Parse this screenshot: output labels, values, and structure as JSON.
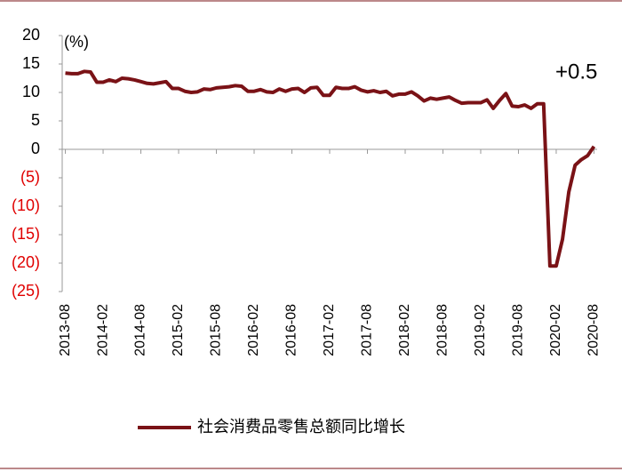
{
  "chart_data": {
    "type": "line",
    "annotations": [
      "(%)",
      "+0.5"
    ],
    "categories": [
      "2013-08",
      null,
      null,
      null,
      null,
      null,
      "2014-02",
      null,
      null,
      null,
      null,
      null,
      "2014-08",
      null,
      null,
      null,
      null,
      null,
      "2015-02",
      null,
      null,
      null,
      null,
      null,
      "2015-08",
      null,
      null,
      null,
      null,
      null,
      "2016-02",
      null,
      null,
      null,
      null,
      null,
      "2016-08",
      null,
      null,
      null,
      null,
      null,
      "2017-02",
      null,
      null,
      null,
      null,
      null,
      "2017-08",
      null,
      null,
      null,
      null,
      null,
      "2018-02",
      null,
      null,
      null,
      null,
      null,
      "2018-08",
      null,
      null,
      null,
      null,
      null,
      "2019-02",
      null,
      null,
      null,
      null,
      null,
      "2019-08",
      null,
      null,
      null,
      null,
      null,
      "2020-02",
      null,
      null,
      null,
      null,
      null,
      "2020-08"
    ],
    "series": [
      {
        "name": "社会消费品零售总额同比增长",
        "color": "#7a1216",
        "values": [
          13.4,
          13.3,
          13.3,
          13.7,
          13.6,
          11.8,
          11.8,
          12.2,
          11.9,
          12.5,
          12.4,
          12.2,
          11.9,
          11.6,
          11.5,
          11.7,
          11.9,
          10.7,
          10.7,
          10.2,
          10.0,
          10.1,
          10.6,
          10.5,
          10.8,
          10.9,
          11.0,
          11.2,
          11.1,
          10.2,
          10.2,
          10.5,
          10.1,
          10.0,
          10.6,
          10.2,
          10.6,
          10.7,
          10.0,
          10.8,
          10.9,
          9.5,
          9.5,
          10.9,
          10.7,
          10.7,
          11.0,
          10.4,
          10.1,
          10.3,
          10.0,
          10.2,
          9.4,
          9.7,
          9.7,
          10.1,
          9.4,
          8.5,
          9.0,
          8.8,
          9.0,
          9.2,
          8.6,
          8.1,
          8.2,
          8.2,
          8.2,
          8.7,
          7.2,
          8.6,
          9.8,
          7.6,
          7.5,
          7.8,
          7.2,
          8.0,
          8.0,
          -20.5,
          -20.5,
          -15.8,
          -7.5,
          -2.8,
          -1.8,
          -1.1,
          0.5
        ]
      }
    ],
    "ylim": [
      -25,
      20
    ],
    "yticks": [
      20,
      15,
      10,
      5,
      0,
      {
        "value": -5,
        "label": "(5)"
      },
      {
        "value": -10,
        "label": "(10)"
      },
      {
        "value": -15,
        "label": "(15)"
      },
      {
        "value": -20,
        "label": "(20)"
      },
      {
        "value": -25,
        "label": "(25)"
      }
    ],
    "negative_tick_color": "#e00000",
    "grid": false
  }
}
